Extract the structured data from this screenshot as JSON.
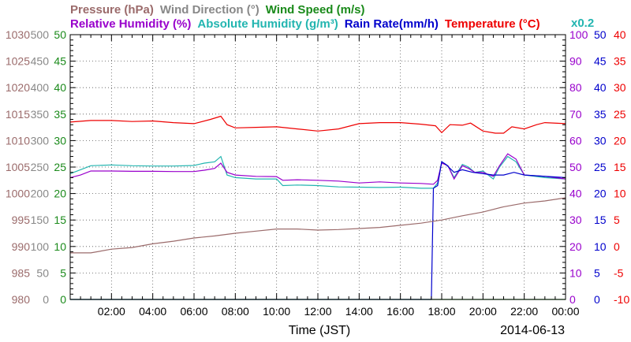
{
  "chart_data": {
    "type": "line",
    "xlabel": "Time (JST)",
    "date_label": "2014-06-13",
    "x_ticks": [
      "02:00",
      "04:00",
      "06:00",
      "08:00",
      "10:00",
      "12:00",
      "14:00",
      "16:00",
      "18:00",
      "20:00",
      "22:00",
      "00:00"
    ],
    "x_range_hours": [
      0,
      24
    ],
    "grid": true,
    "legend_row1": [
      {
        "text": "Pressure (hPa)",
        "color": "#9b6b6b"
      },
      {
        "text": "Wind Direction (°)",
        "color": "#888888"
      },
      {
        "text": "Wind Speed (m/s)",
        "color": "#1a8a1a"
      }
    ],
    "legend_row2": [
      {
        "text": "Relative Humidity (%)",
        "color": "#9900cc"
      },
      {
        "text": "Absolute Humidity (g/m³)",
        "color": "#22b5b0"
      },
      {
        "text": "Rain Rate(mm/h)",
        "color": "#0000cc"
      },
      {
        "text": "Temperature (°C)",
        "color": "#ee0000"
      }
    ],
    "scale_note": "x0.2",
    "axes": [
      {
        "name": "Pressure",
        "side": "left",
        "color": "#9b6b6b",
        "range": [
          980,
          1030
        ],
        "ticks": [
          "1030",
          "1025",
          "1020",
          "1015",
          "1010",
          "1005",
          "1000",
          "995",
          "990",
          "985",
          "980"
        ]
      },
      {
        "name": "Wind Direction",
        "side": "left",
        "color": "#888888",
        "range": [
          0,
          500
        ],
        "ticks": [
          "500",
          "450",
          "400",
          "350",
          "300",
          "250",
          "200",
          "150",
          "100",
          "50",
          "0"
        ]
      },
      {
        "name": "Wind Speed",
        "side": "left",
        "color": "#1a8a1a",
        "range": [
          0,
          50
        ],
        "ticks": [
          "50",
          "45",
          "40",
          "35",
          "30",
          "25",
          "20",
          "15",
          "10",
          "5",
          "0"
        ]
      },
      {
        "name": "Relative Humidity",
        "side": "right",
        "color": "#9900cc",
        "range": [
          0,
          100
        ],
        "ticks": [
          "100",
          "90",
          "80",
          "70",
          "60",
          "50",
          "40",
          "30",
          "20",
          "10",
          "0"
        ]
      },
      {
        "name": "Rain Rate",
        "side": "right",
        "color": "#0000cc",
        "range": [
          0,
          50
        ],
        "ticks": [
          "50",
          "45",
          "40",
          "35",
          "30",
          "25",
          "20",
          "15",
          "10",
          "5",
          "0"
        ]
      },
      {
        "name": "Temperature",
        "side": "right",
        "color": "#ee0000",
        "range": [
          -10,
          40
        ],
        "ticks": [
          "40",
          "35",
          "30",
          "25",
          "20",
          "15",
          "10",
          "5",
          "0",
          "-5",
          "-10"
        ]
      }
    ],
    "series": [
      {
        "name": "Temperature",
        "color": "#ee0000",
        "axis": "Temperature",
        "x": [
          0,
          1,
          2,
          3,
          4,
          5,
          6,
          6.8,
          7.3,
          7.6,
          8,
          9,
          10,
          11,
          12,
          13,
          14,
          15,
          16,
          17,
          17.7,
          18.0,
          18.4,
          19.0,
          19.4,
          20,
          20.6,
          21.0,
          21.4,
          22,
          22.6,
          23,
          24
        ],
        "y": [
          23.5,
          23.8,
          23.8,
          23.6,
          23.7,
          23.4,
          23.2,
          24.0,
          24.6,
          23.0,
          22.4,
          22.5,
          22.6,
          22.2,
          21.8,
          22.2,
          23.2,
          23.4,
          23.4,
          23.1,
          22.8,
          21.5,
          23.0,
          22.9,
          23.3,
          21.8,
          21.4,
          21.4,
          22.6,
          22.2,
          23.0,
          23.4,
          23.2
        ]
      },
      {
        "name": "Absolute Humidity",
        "color": "#22b5b0",
        "axis": "Relative Humidity",
        "x": [
          0,
          1,
          2,
          3,
          4,
          5,
          6,
          6.5,
          7.0,
          7.3,
          7.6,
          8,
          9,
          10,
          10.3,
          11,
          12,
          13,
          14,
          15,
          16,
          17,
          17.6,
          17.8,
          18.0,
          18.3,
          18.6,
          19.0,
          19.3,
          19.6,
          20,
          20.5,
          20.8,
          21.2,
          21.6,
          22,
          23,
          24
        ],
        "y": [
          47.5,
          50.5,
          50.8,
          50.5,
          50.4,
          50.4,
          50.6,
          51.5,
          52.0,
          54.0,
          47.0,
          46.0,
          45.5,
          45.5,
          43.0,
          43.2,
          43.0,
          42.5,
          42.4,
          42.3,
          42.4,
          42.0,
          42.0,
          44.0,
          52.0,
          50.5,
          46.0,
          51.0,
          50.0,
          48.0,
          48.5,
          45.5,
          50.0,
          54.0,
          52.0,
          47.0,
          46.0,
          45.5
        ]
      },
      {
        "name": "Relative Humidity",
        "color": "#9900cc",
        "axis": "Relative Humidity",
        "x": [
          0,
          0.5,
          1,
          2,
          3,
          4,
          5,
          6,
          6.5,
          7.0,
          7.3,
          7.6,
          8,
          9,
          10,
          10.3,
          11,
          12,
          13,
          14,
          15,
          16,
          17,
          17.6,
          17.8,
          18.0,
          18.3,
          18.6,
          19.0,
          19.3,
          19.6,
          20,
          20.5,
          20.8,
          21.2,
          21.6,
          22,
          23,
          24
        ],
        "y": [
          46.0,
          47.0,
          48.5,
          48.5,
          48.4,
          48.4,
          48.3,
          48.3,
          48.8,
          49.5,
          51.5,
          48.0,
          47.0,
          46.5,
          46.4,
          45.0,
          45.2,
          45.0,
          44.7,
          44.0,
          44.4,
          44.0,
          43.8,
          43.5,
          45.0,
          51.5,
          50.5,
          45.5,
          50.5,
          49.5,
          48.0,
          48.0,
          46.5,
          50.5,
          55.0,
          53.0,
          47.0,
          46.5,
          45.5
        ]
      },
      {
        "name": "Rain Rate",
        "color": "#0000cc",
        "axis": "Rain Rate",
        "x": [
          0,
          17.3,
          17.5,
          17.6,
          17.8,
          18.0,
          18.2,
          18.6,
          19.0,
          19.5,
          20.5,
          21.0,
          21.5,
          22,
          24
        ],
        "y": [
          0,
          0,
          0,
          21.0,
          21.5,
          26.0,
          25.5,
          24.0,
          24.5,
          24.0,
          23.5,
          23.5,
          24.0,
          23.5,
          23.0
        ]
      },
      {
        "name": "Pressure",
        "color": "#9b6b6b",
        "axis": "Pressure",
        "x": [
          0,
          1,
          2,
          3,
          4,
          5,
          6,
          7,
          8,
          9,
          10,
          11,
          12,
          13,
          14,
          15,
          16,
          17,
          18,
          19,
          20,
          21,
          22,
          23,
          24
        ],
        "y": [
          988.8,
          988.8,
          989.5,
          989.8,
          990.5,
          991.0,
          991.6,
          992.0,
          992.5,
          992.9,
          993.3,
          993.3,
          993.1,
          993.2,
          993.4,
          993.6,
          994.0,
          994.4,
          995.0,
          995.8,
          996.5,
          997.5,
          998.2,
          998.6,
          999.2
        ]
      },
      {
        "name": "Wind Speed",
        "color": "#1a8a1a",
        "axis": "Wind Speed",
        "x": [
          0,
          24
        ],
        "y": [
          0,
          0
        ]
      }
    ]
  }
}
